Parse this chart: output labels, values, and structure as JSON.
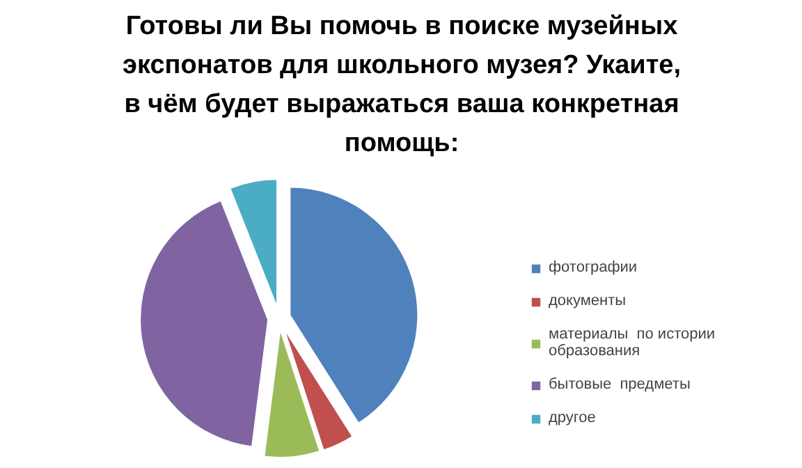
{
  "chart_data": {
    "type": "pie",
    "title": "Готовы ли Вы помочь в поиске музейных\nэкспонатов для школьного музея? Укаите,\nв чём будет выражаться ваша конкретная\nпомощь:",
    "categories": [
      "фотографии",
      "документы",
      "материалы  по истории образования",
      "бытовые  предметы",
      "другое"
    ],
    "values": [
      41,
      4,
      7,
      42,
      6
    ],
    "colors": [
      "#4f81bd",
      "#c0504d",
      "#9bbb59",
      "#8064a2",
      "#4bacc6"
    ],
    "legend": "right"
  }
}
